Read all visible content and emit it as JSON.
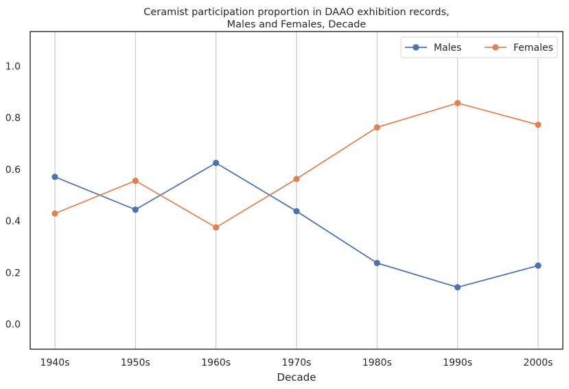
{
  "chart_data": {
    "type": "line",
    "title_lines": [
      "Ceramist participation proportion in DAAO exhibition records,",
      "Males and Females, Decade"
    ],
    "xlabel": "Decade",
    "ylabel": "",
    "categories": [
      "1940s",
      "1950s",
      "1960s",
      "1970s",
      "1980s",
      "1990s",
      "2000s"
    ],
    "y_ticks": [
      "0.0",
      "0.2",
      "0.4",
      "0.6",
      "0.8",
      "1.0"
    ],
    "ylim": [
      -0.1,
      1.13
    ],
    "grid": "vertical",
    "legend_position": "top-right",
    "series": [
      {
        "name": "Males",
        "color": "#4c72b0",
        "values": [
          0.571,
          0.444,
          0.625,
          0.438,
          0.237,
          0.143,
          0.227
        ]
      },
      {
        "name": "Females",
        "color": "#dd8452",
        "values": [
          0.429,
          0.556,
          0.375,
          0.563,
          0.763,
          0.857,
          0.773
        ]
      }
    ]
  }
}
